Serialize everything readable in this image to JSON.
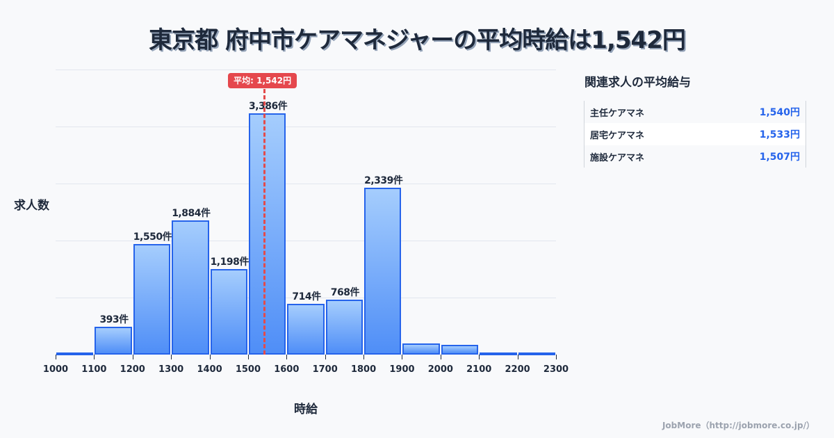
{
  "title": "東京都 府中市ケアマネジャーの平均時給は1,542円",
  "chart_data": {
    "type": "bar",
    "title": "東京都 府中市ケアマネジャーの平均時給は1,542円",
    "xlabel": "時給",
    "ylabel": "求人数",
    "x_ticks": [
      "1000",
      "1100",
      "1200",
      "1300",
      "1400",
      "1500",
      "1600",
      "1700",
      "1800",
      "1900",
      "2000",
      "2100",
      "2200",
      "2300"
    ],
    "categories": [
      "1000-1100",
      "1100-1200",
      "1200-1300",
      "1300-1400",
      "1400-1500",
      "1500-1600",
      "1600-1700",
      "1700-1800",
      "1800-1900",
      "1900-2000",
      "2000-2100",
      "2100-2200",
      "2200-2300"
    ],
    "values": [
      10,
      393,
      1550,
      1884,
      1198,
      3386,
      714,
      768,
      2339,
      155,
      135,
      25,
      30
    ],
    "labels": [
      "",
      "393件",
      "1,550件",
      "1,884件",
      "1,198件",
      "3,386件",
      "714件",
      "768件",
      "2,339件",
      "",
      "",
      "",
      ""
    ],
    "ylim": [
      0,
      4000
    ],
    "grid": true,
    "mean": 1542,
    "mean_label": "平均: 1,542円"
  },
  "sidebar": {
    "title": "関連求人の平均給与",
    "rows": [
      {
        "name": "主任ケアマネ",
        "value": "1,540円"
      },
      {
        "name": "居宅ケアマネ",
        "value": "1,533円"
      },
      {
        "name": "施設ケアマネ",
        "value": "1,507円"
      }
    ]
  },
  "footer": "JobMore（http://jobmore.co.jp/）",
  "colors": {
    "bar_border": "#2563eb",
    "bar_top": "#a5cdfd",
    "bar_bottom": "#4f8ef7",
    "mean": "#e5484d",
    "accent": "#2563eb"
  }
}
